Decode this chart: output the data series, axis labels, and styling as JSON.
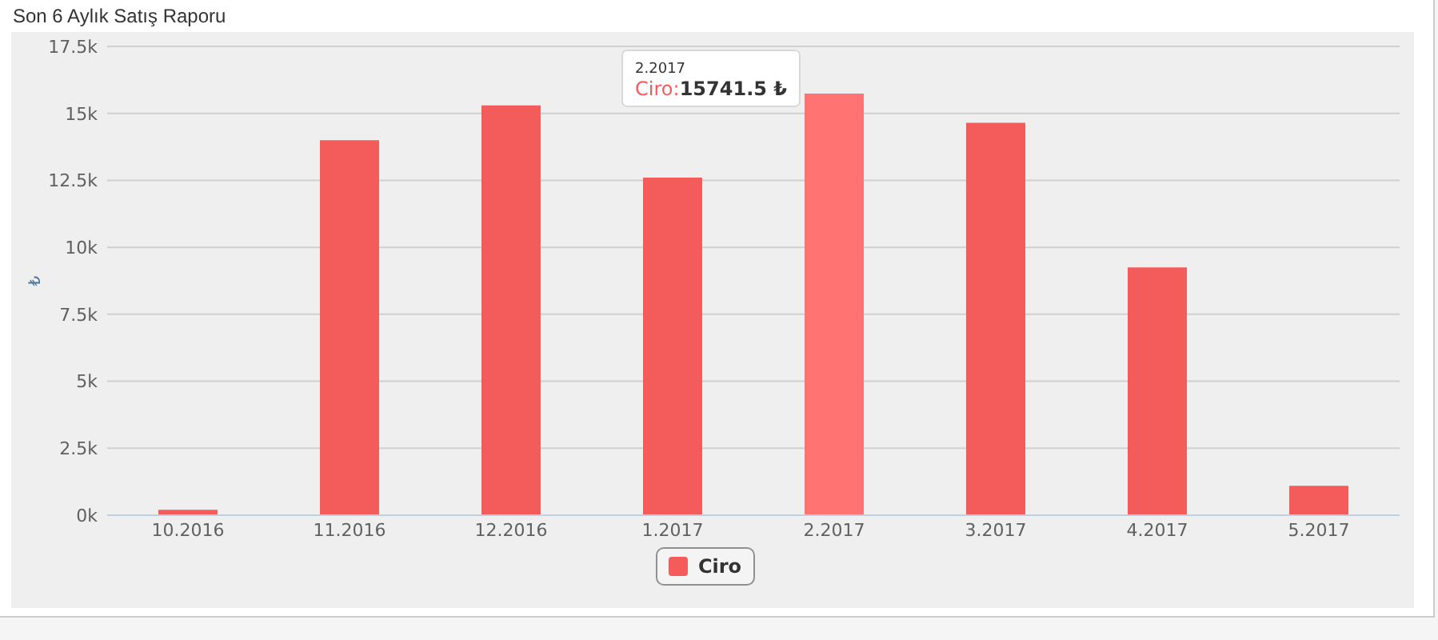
{
  "chart_data": {
    "type": "bar",
    "title": "Son 6 Aylık Satış Raporu",
    "ylabel": "₺",
    "categories": [
      "10.2016",
      "11.2016",
      "12.2016",
      "1.2017",
      "2.2017",
      "3.2017",
      "4.2017",
      "5.2017"
    ],
    "series": [
      {
        "name": "Ciro",
        "color": "#f45b5b",
        "colors": [
          "#f45b5b",
          "#f45b5b",
          "#f45b5b",
          "#f45b5b",
          "#ff7373",
          "#f45b5b",
          "#f45b5b",
          "#f45b5b"
        ],
        "values": [
          200,
          14000,
          15300,
          12600,
          15741.5,
          14650,
          9250,
          1100
        ]
      }
    ],
    "ylim": [
      0,
      17500
    ],
    "yticks": [
      {
        "value": 0,
        "label": "0k"
      },
      {
        "value": 2500,
        "label": "2.5k"
      },
      {
        "value": 5000,
        "label": "5k"
      },
      {
        "value": 7500,
        "label": "7.5k"
      },
      {
        "value": 10000,
        "label": "10k"
      },
      {
        "value": 12500,
        "label": "12.5k"
      },
      {
        "value": 15000,
        "label": "15k"
      },
      {
        "value": 17500,
        "label": "17.5k"
      }
    ],
    "grid": "y",
    "legend": "bottom",
    "annotations": [
      {
        "text": "2.2017\nCiro:15741.5 ₺",
        "x": "2.2017",
        "y": 15741.5
      }
    ]
  }
}
